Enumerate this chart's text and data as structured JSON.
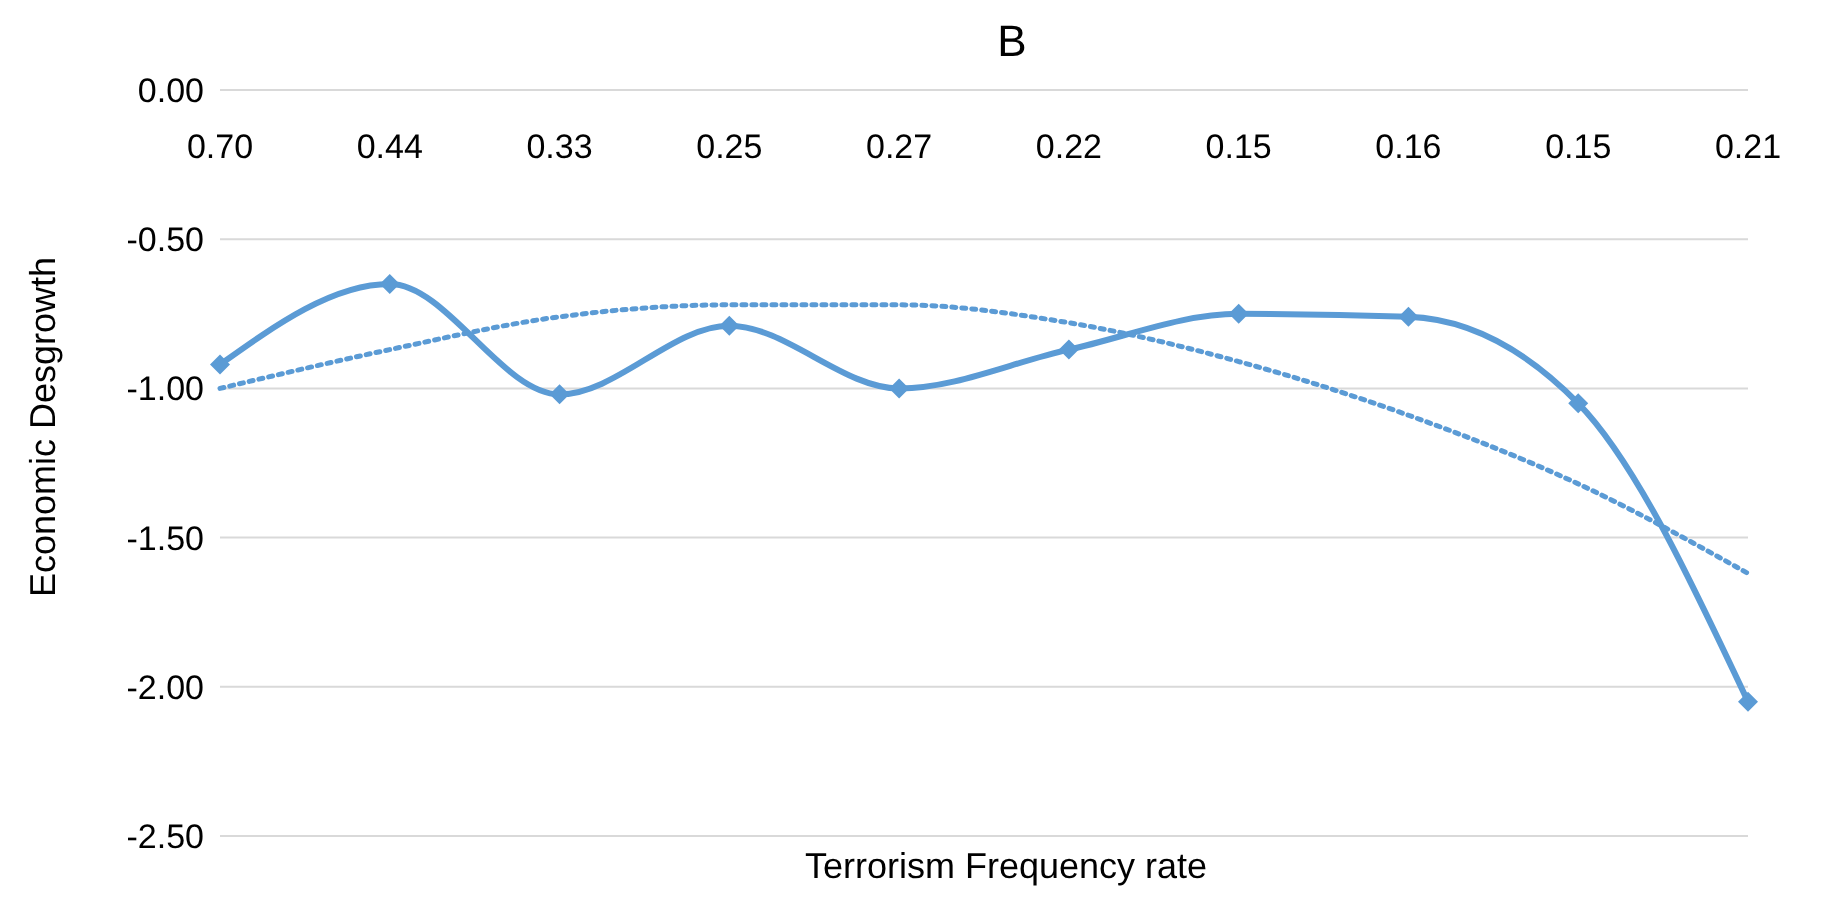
{
  "chart_data": {
    "type": "line",
    "title": "B",
    "xlabel": "Terrorism Frequency rate",
    "ylabel": "Economic Desgrowth",
    "categories": [
      "0.70",
      "0.44",
      "0.33",
      "0.25",
      "0.27",
      "0.22",
      "0.15",
      "0.16",
      "0.15",
      "0.21"
    ],
    "series": [
      {
        "color": "#5b9bd5",
        "marker": "diamond",
        "line_style": "solid",
        "values": [
          -0.92,
          -0.65,
          -1.02,
          -0.79,
          -1.0,
          -0.87,
          -0.75,
          -0.76,
          -1.05,
          -2.05
        ]
      },
      {
        "color": "#5b9bd5",
        "marker": "none",
        "line_style": "dotted",
        "values": [
          -1.0,
          -0.87,
          -0.76,
          -0.72,
          -0.72,
          -0.78,
          -0.91,
          -1.09,
          -1.32,
          -1.62
        ]
      }
    ],
    "ylim": [
      -2.5,
      0
    ],
    "yticks": [
      {
        "value": 0,
        "label": "0.00"
      },
      {
        "value": -0.5,
        "label": "-0.50"
      },
      {
        "value": -1,
        "label": "-1.00"
      },
      {
        "value": -1.5,
        "label": "-1.50"
      },
      {
        "value": -2,
        "label": "-2.00"
      },
      {
        "value": -2.5,
        "label": "-2.50"
      }
    ],
    "grid": "y"
  }
}
